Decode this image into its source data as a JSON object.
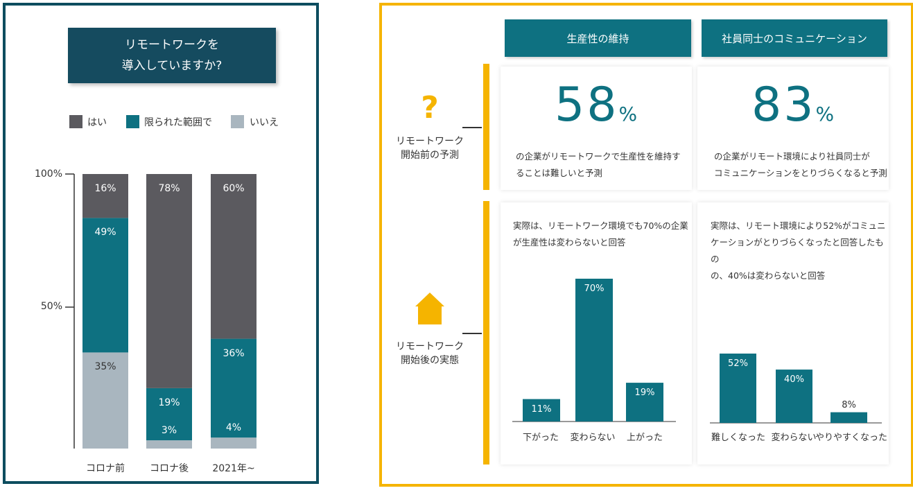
{
  "chart_data": [
    {
      "type": "bar",
      "stacked": true,
      "title": "リモートワークを導入していますか?",
      "title_lines": [
        "リモートワークを",
        "導入していますか?"
      ],
      "categories": [
        "コロナ前",
        "コロナ後",
        "2021年~"
      ],
      "series": [
        {
          "name": "いいえ",
          "values": [
            35,
            3,
            4
          ],
          "color": "#a9b6bf"
        },
        {
          "name": "限られた範囲で",
          "values": [
            49,
            19,
            36
          ],
          "color": "#0e7181"
        },
        {
          "name": "はい",
          "values": [
            16,
            78,
            60
          ],
          "color": "#5b5a5f"
        }
      ],
      "legend": [
        "はい",
        "限られた範囲で",
        "いいえ"
      ],
      "legend_placement": "top",
      "yticks": [
        "100%",
        "50%"
      ],
      "ylim": [
        0,
        100
      ]
    },
    {
      "type": "bar",
      "section": "生産性の維持",
      "categories": [
        "下がった",
        "変わらない",
        "上がった"
      ],
      "values": [
        11,
        70,
        19
      ],
      "labels": [
        "11%",
        "70%",
        "19%"
      ]
    },
    {
      "type": "bar",
      "section": "社員同士のコミュニケーション",
      "categories": [
        "難しくなった",
        "変わらない",
        "やりやすくなった"
      ],
      "values": [
        52,
        40,
        8
      ],
      "labels": [
        "52%",
        "40%",
        "8%"
      ]
    }
  ],
  "right": {
    "col_headers": [
      "生産性の維持",
      "社員同士のコミュニケーション"
    ],
    "row_before": {
      "label_lines": [
        "リモートワーク",
        "開始前の予測"
      ],
      "icon": "question-mark-icon"
    },
    "row_after": {
      "label_lines": [
        "リモートワーク",
        "開始後の実態"
      ],
      "icon": "house-icon"
    },
    "pred_productivity": {
      "num": "58",
      "sign": "%",
      "desc_lines": [
        "の企業がリモートワークで生産性を維持す",
        "ることは難しいと予測"
      ]
    },
    "pred_communication": {
      "num": "83",
      "sign": "%",
      "desc_lines": [
        "の企業がリモート環境により社員同士が",
        "コミュニケーションをとりづらくなると予測"
      ]
    },
    "actual_productivity": {
      "desc_lines": [
        "実際は、リモートワーク環境でも70%の企業",
        "が生産性は変わらないと回答"
      ]
    },
    "actual_communication": {
      "desc_lines": [
        "実際は、リモート環境により52%がコミュニ",
        "ケーションがとりづらくなったと回答したもの",
        "の、40%は変わらないと回答"
      ]
    }
  },
  "colors": {
    "teal": "#0e7181",
    "dark_gray": "#5b5a5f",
    "light_gray": "#a9b6bf",
    "navy": "#154b5f",
    "yellow": "#f5b400"
  }
}
